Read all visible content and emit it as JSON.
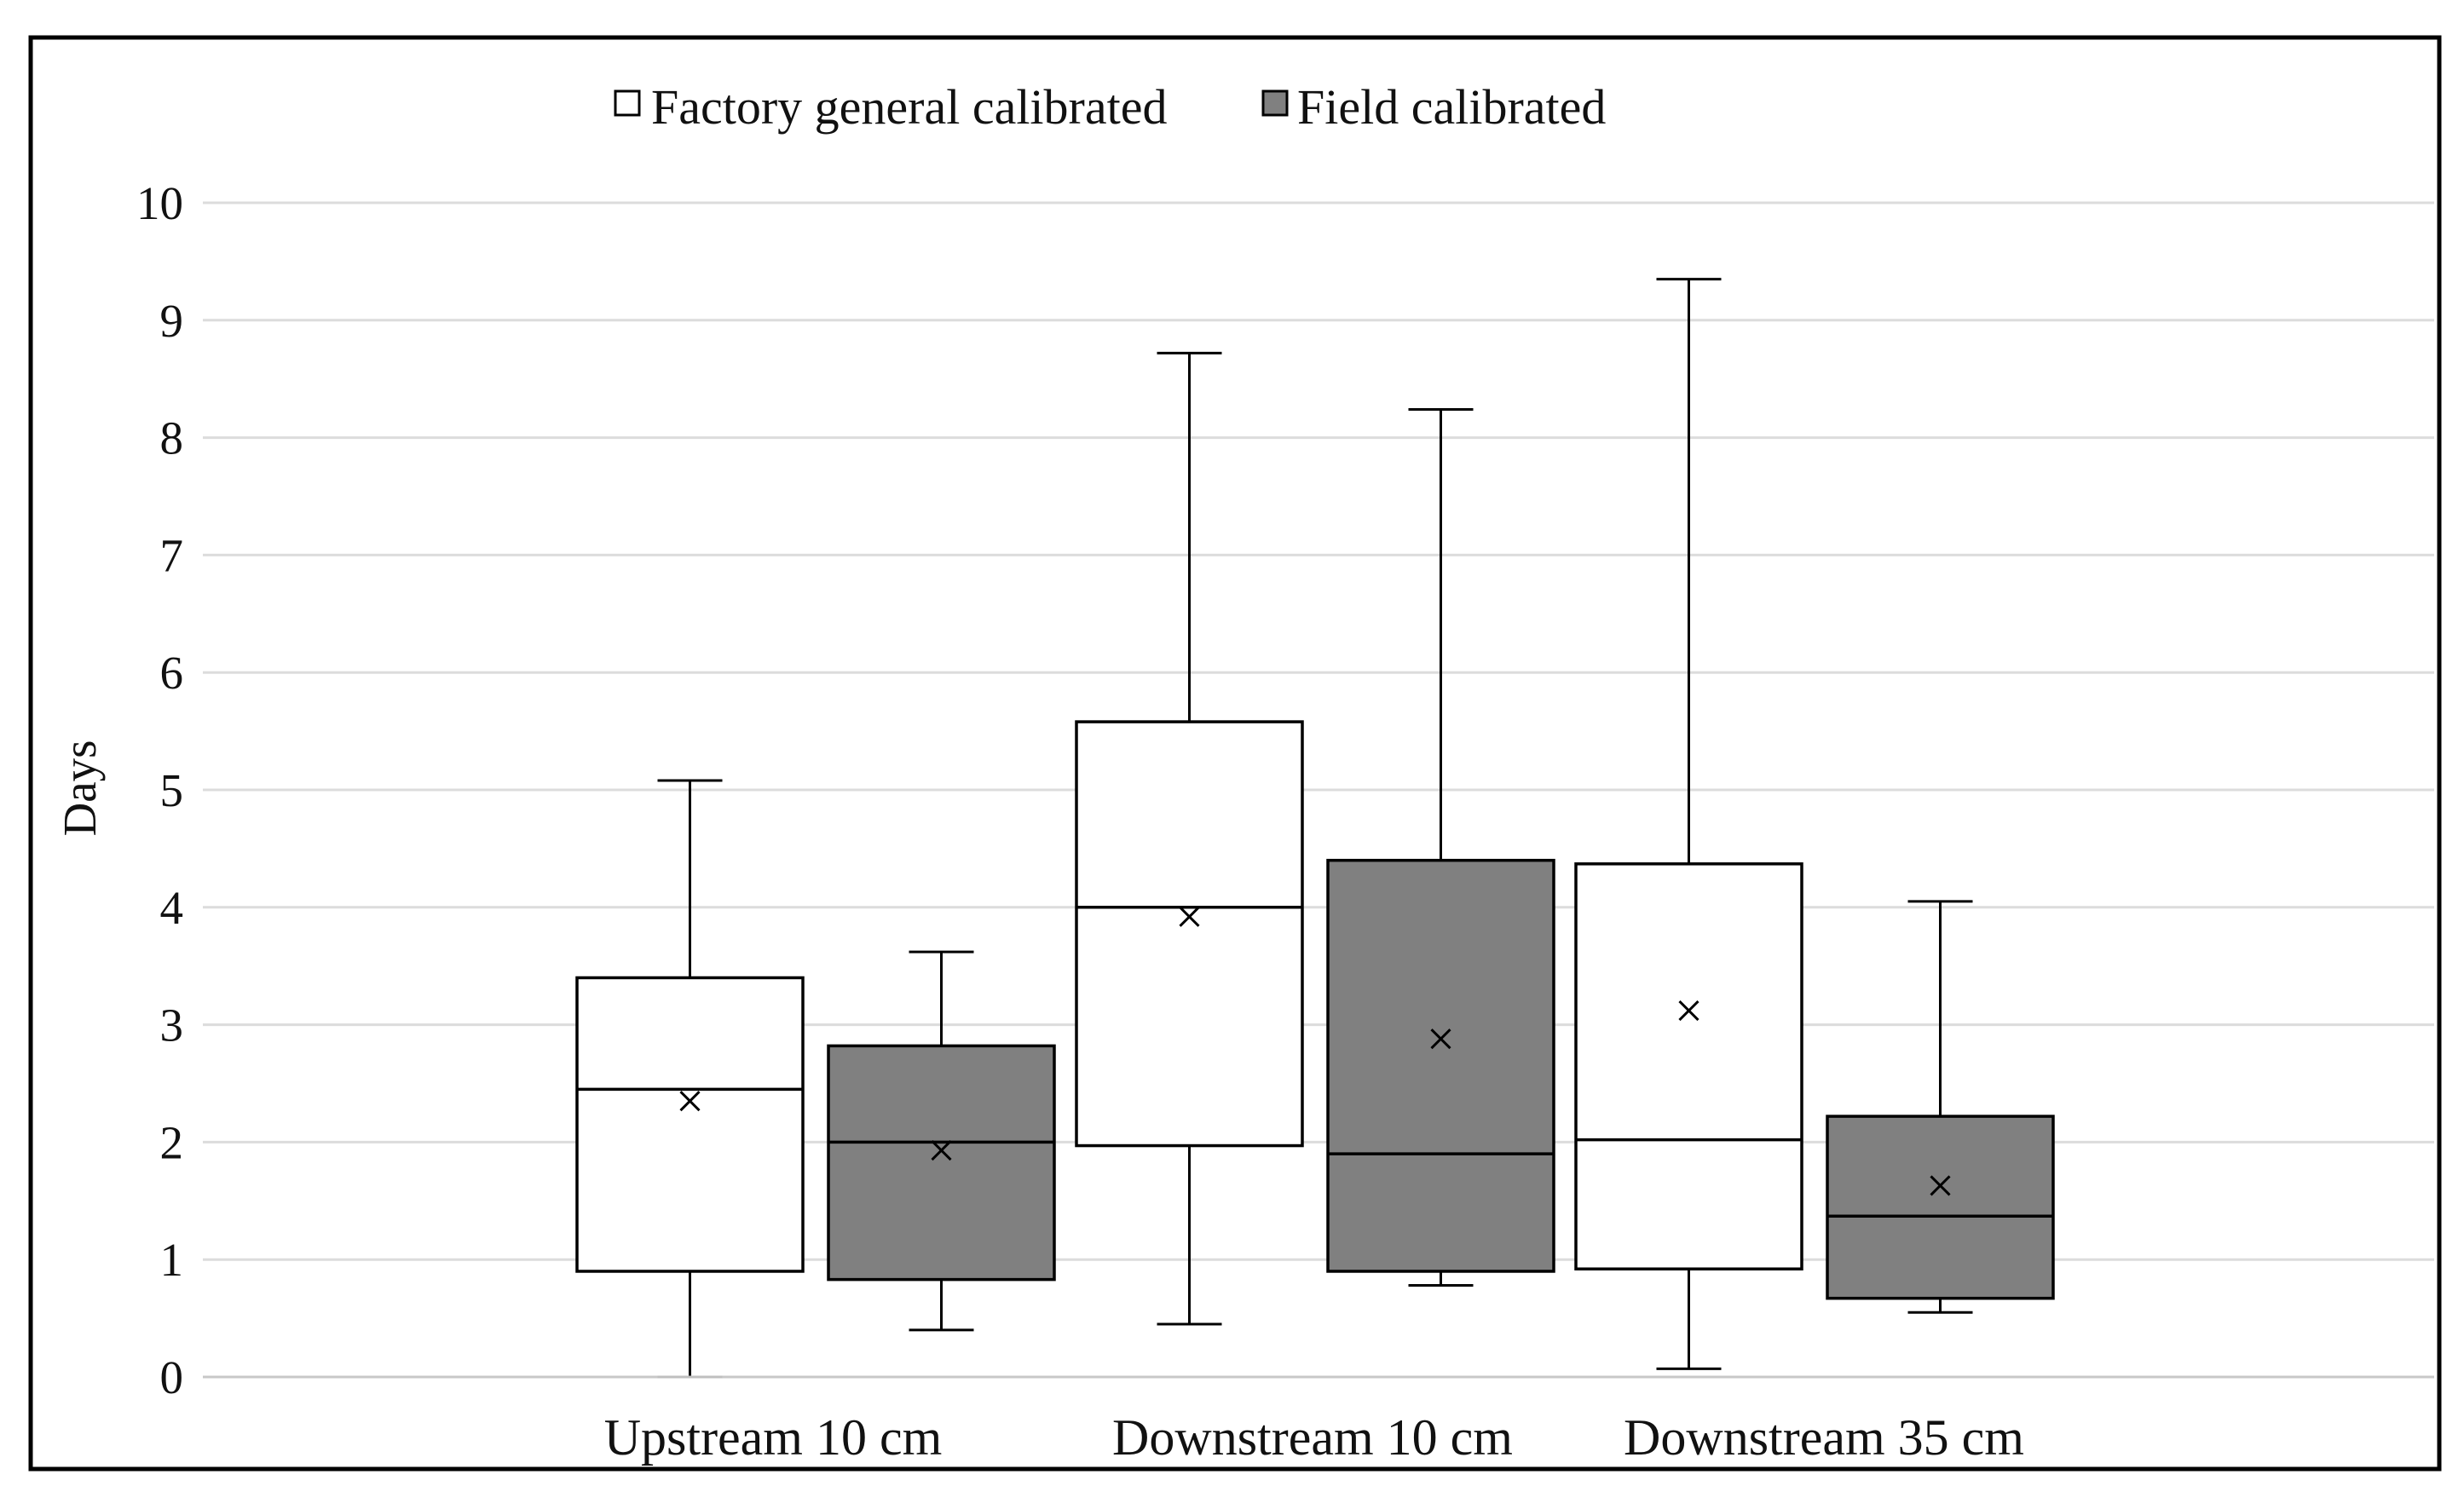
{
  "chart_data": {
    "type": "box",
    "title": "",
    "xlabel": "",
    "ylabel": "Days",
    "ylim": [
      0,
      10
    ],
    "yticks": [
      "0",
      "1",
      "2",
      "3",
      "4",
      "5",
      "6",
      "7",
      "8",
      "9",
      "10"
    ],
    "grid": true,
    "legend_position": "top-left",
    "categories": [
      "Upstream 10 cm",
      "Downstream 10 cm",
      "Downstream 35 cm"
    ],
    "series": [
      {
        "name": "Factory general calibrated",
        "color": "#ffffff",
        "boxes": [
          {
            "min": 0.0,
            "q1": 0.9,
            "median": 2.45,
            "q3": 3.4,
            "max": 5.08,
            "mean": 2.35
          },
          {
            "min": 0.45,
            "q1": 1.97,
            "median": 4.0,
            "q3": 5.58,
            "max": 8.72,
            "mean": 3.92
          },
          {
            "min": 0.07,
            "q1": 0.92,
            "median": 2.02,
            "q3": 4.37,
            "max": 9.35,
            "mean": 3.12
          }
        ]
      },
      {
        "name": "Field calibrated",
        "color": "#808080",
        "boxes": [
          {
            "min": 0.4,
            "q1": 0.83,
            "median": 2.0,
            "q3": 2.82,
            "max": 3.62,
            "mean": 1.93
          },
          {
            "min": 0.78,
            "q1": 0.9,
            "median": 1.9,
            "q3": 4.4,
            "max": 8.24,
            "mean": 2.88
          },
          {
            "min": 0.55,
            "q1": 0.67,
            "median": 1.37,
            "q3": 2.22,
            "max": 4.05,
            "mean": 1.63
          }
        ]
      }
    ]
  }
}
